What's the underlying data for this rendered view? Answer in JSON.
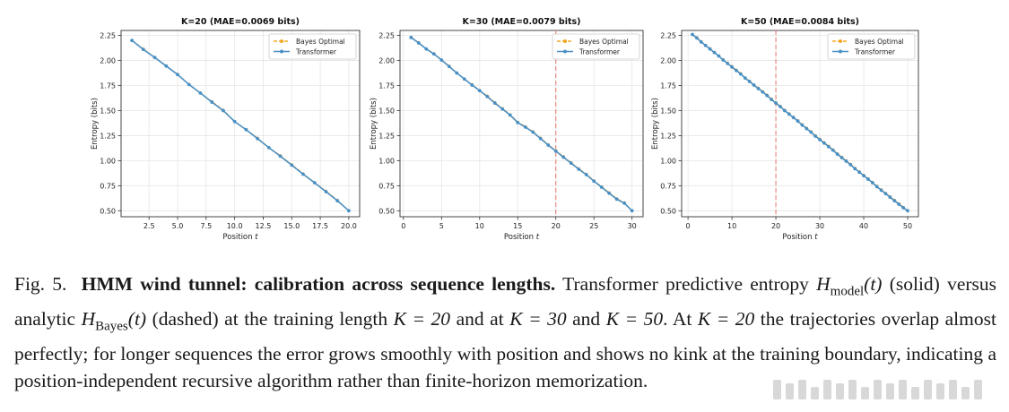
{
  "figure": {
    "label": "Fig. 5.",
    "title": "HMM wind tunnel: calibration across sequence lengths.",
    "caption_parts": {
      "p1": "Transformer predictive entropy ",
      "h_model": "H",
      "h_model_sub": "model",
      "t_arg": "(t)",
      "p2": " (solid) versus analytic ",
      "h_bayes": "H",
      "h_bayes_sub": "Bayes",
      "p3": " (dashed) at the training length ",
      "k20": "K = 20",
      "p4": " and at ",
      "k30": "K = 30",
      "p5": " and ",
      "k50": "K = 50",
      "p6": ". At ",
      "k20b": "K = 20",
      "p7": " the trajectories overlap almost perfectly; for longer sequences the error grows smoothly with position and shows no kink at the training boundary, indicating a position-independent recursive algorithm rather than finite-horizon memorization."
    }
  },
  "chart_data": [
    {
      "type": "line",
      "title": "K=20 (MAE=0.0069 bits)",
      "xlabel": "Position t",
      "ylabel": "Entropy (bits)",
      "xlim": [
        0.05,
        20.95
      ],
      "ylim": [
        0.44,
        2.3
      ],
      "xticks": [
        2.5,
        5.0,
        7.5,
        10.0,
        12.5,
        15.0,
        17.5,
        20.0
      ],
      "xtick_labels": [
        "2.5",
        "5.0",
        "7.5",
        "10.0",
        "12.5",
        "15.0",
        "17.5",
        "20.0"
      ],
      "yticks": [
        0.5,
        0.75,
        1.0,
        1.25,
        1.5,
        1.75,
        2.0,
        2.25
      ],
      "ytick_labels": [
        "0.50",
        "0.75",
        "1.00",
        "1.25",
        "1.50",
        "1.75",
        "2.00",
        "2.25"
      ],
      "grid": true,
      "legend": "top-right",
      "training_boundary": null,
      "x": [
        1,
        2,
        3,
        4,
        5,
        6,
        7,
        8,
        9,
        10,
        11,
        12,
        13,
        14,
        15,
        16,
        17,
        18,
        19,
        20
      ],
      "series": [
        {
          "name": "Bayes Optimal",
          "color": "#f5a623",
          "style": "dashed",
          "values": [
            2.2,
            2.115,
            2.03,
            1.945,
            1.86,
            1.76,
            1.675,
            1.59,
            1.505,
            1.39,
            1.31,
            1.225,
            1.13,
            1.05,
            0.96,
            0.87,
            0.78,
            0.695,
            0.605,
            0.5
          ]
        },
        {
          "name": "Transformer",
          "color": "#4a90c4",
          "style": "solid",
          "values": [
            2.2,
            2.11,
            2.03,
            1.945,
            1.86,
            1.76,
            1.675,
            1.585,
            1.5,
            1.39,
            1.31,
            1.22,
            1.13,
            1.045,
            0.955,
            0.865,
            0.78,
            0.69,
            0.6,
            0.5
          ]
        }
      ]
    },
    {
      "type": "line",
      "title": "K=30 (MAE=0.0079 bits)",
      "xlabel": "Position t",
      "ylabel": "Entropy (bits)",
      "xlim": [
        -0.45,
        31.45
      ],
      "ylim": [
        0.44,
        2.3
      ],
      "xticks": [
        0,
        5,
        10,
        15,
        20,
        25,
        30
      ],
      "xtick_labels": [
        "0",
        "5",
        "10",
        "15",
        "20",
        "25",
        "30"
      ],
      "yticks": [
        0.5,
        0.75,
        1.0,
        1.25,
        1.5,
        1.75,
        2.0,
        2.25
      ],
      "ytick_labels": [
        "0.50",
        "0.75",
        "1.00",
        "1.25",
        "1.50",
        "1.75",
        "2.00",
        "2.25"
      ],
      "grid": true,
      "legend": "top-right",
      "training_boundary": 20,
      "x": [
        1,
        2,
        3,
        4,
        5,
        6,
        7,
        8,
        9,
        10,
        11,
        12,
        13,
        14,
        15,
        16,
        17,
        18,
        19,
        20,
        21,
        22,
        23,
        24,
        25,
        26,
        27,
        28,
        29,
        30
      ],
      "series": [
        {
          "name": "Bayes Optimal",
          "color": "#f5a623",
          "style": "dashed",
          "values": [
            2.23,
            2.18,
            2.115,
            2.07,
            2.005,
            1.945,
            1.875,
            1.815,
            1.76,
            1.7,
            1.645,
            1.58,
            1.52,
            1.46,
            1.385,
            1.34,
            1.29,
            1.225,
            1.16,
            1.1,
            1.04,
            0.98,
            0.92,
            0.865,
            0.8,
            0.74,
            0.68,
            0.62,
            0.58,
            0.5
          ]
        },
        {
          "name": "Transformer",
          "color": "#4a90c4",
          "style": "solid",
          "values": [
            2.23,
            2.175,
            2.115,
            2.065,
            2.005,
            1.94,
            1.875,
            1.815,
            1.755,
            1.7,
            1.64,
            1.575,
            1.515,
            1.455,
            1.38,
            1.335,
            1.285,
            1.22,
            1.155,
            1.095,
            1.035,
            0.975,
            0.915,
            0.86,
            0.795,
            0.735,
            0.675,
            0.615,
            0.575,
            0.5
          ]
        }
      ]
    },
    {
      "type": "line",
      "title": "K=50 (MAE=0.0084 bits)",
      "xlabel": "Position t",
      "ylabel": "Entropy (bits)",
      "xlim": [
        -1.45,
        52.45
      ],
      "ylim": [
        0.44,
        2.3
      ],
      "xticks": [
        0,
        10,
        20,
        30,
        40,
        50
      ],
      "xtick_labels": [
        "0",
        "10",
        "20",
        "30",
        "40",
        "50"
      ],
      "yticks": [
        0.5,
        0.75,
        1.0,
        1.25,
        1.5,
        1.75,
        2.0,
        2.25
      ],
      "ytick_labels": [
        "0.50",
        "0.75",
        "1.00",
        "1.25",
        "1.50",
        "1.75",
        "2.00",
        "2.25"
      ],
      "grid": true,
      "legend": "top-right",
      "training_boundary": 20,
      "x": [
        1,
        2,
        3,
        4,
        5,
        6,
        7,
        8,
        9,
        10,
        11,
        12,
        13,
        14,
        15,
        16,
        17,
        18,
        19,
        20,
        21,
        22,
        23,
        24,
        25,
        26,
        27,
        28,
        29,
        30,
        31,
        32,
        33,
        34,
        35,
        36,
        37,
        38,
        39,
        40,
        41,
        42,
        43,
        44,
        45,
        46,
        47,
        48,
        49,
        50
      ],
      "series": [
        {
          "name": "Bayes Optimal",
          "color": "#f5a623",
          "style": "dashed",
          "values": [
            2.26,
            2.23,
            2.19,
            2.15,
            2.12,
            2.08,
            2.045,
            2.01,
            1.975,
            1.94,
            1.905,
            1.87,
            1.825,
            1.795,
            1.755,
            1.725,
            1.69,
            1.655,
            1.615,
            1.58,
            1.545,
            1.505,
            1.47,
            1.435,
            1.4,
            1.36,
            1.325,
            1.29,
            1.25,
            1.215,
            1.18,
            1.145,
            1.11,
            1.07,
            1.035,
            1.0,
            0.965,
            0.925,
            0.89,
            0.855,
            0.82,
            0.785,
            0.745,
            0.71,
            0.675,
            0.64,
            0.605,
            0.57,
            0.535,
            0.5
          ]
        },
        {
          "name": "Transformer",
          "color": "#4a90c4",
          "style": "solid",
          "values": [
            2.26,
            2.225,
            2.185,
            2.15,
            2.115,
            2.08,
            2.045,
            2.005,
            1.97,
            1.935,
            1.9,
            1.865,
            1.825,
            1.79,
            1.755,
            1.72,
            1.685,
            1.65,
            1.61,
            1.575,
            1.54,
            1.5,
            1.465,
            1.43,
            1.395,
            1.355,
            1.32,
            1.285,
            1.245,
            1.21,
            1.175,
            1.14,
            1.105,
            1.065,
            1.03,
            0.995,
            0.96,
            0.92,
            0.885,
            0.85,
            0.815,
            0.78,
            0.74,
            0.705,
            0.67,
            0.635,
            0.6,
            0.565,
            0.53,
            0.5
          ]
        }
      ]
    }
  ]
}
